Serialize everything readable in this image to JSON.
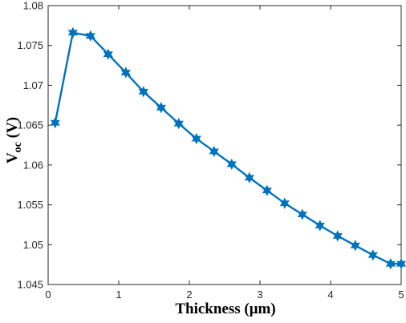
{
  "chart_data": {
    "type": "line",
    "title": "",
    "xlabel": "Thickness (μm)",
    "ylabel_main": "V",
    "ylabel_sub": "oc",
    "ylabel_unit": " (V)",
    "xlim": [
      0,
      5
    ],
    "ylim": [
      1.045,
      1.08
    ],
    "xticks": [
      0,
      1,
      2,
      3,
      4,
      5
    ],
    "xtick_labels": [
      "0",
      "1",
      "2",
      "3",
      "4",
      "5"
    ],
    "yticks": [
      1.045,
      1.05,
      1.055,
      1.06,
      1.065,
      1.07,
      1.075,
      1.08
    ],
    "ytick_labels": [
      "1.045",
      "1.05",
      "1.055",
      "1.06",
      "1.065",
      "1.07",
      "1.075",
      "1.08"
    ],
    "grid": false,
    "marker": "hexagram",
    "color": "#0072BD",
    "series": [
      {
        "x": [
          0.1,
          0.35,
          0.6,
          0.85,
          1.1,
          1.35,
          1.6,
          1.85,
          2.1,
          2.35,
          2.6,
          2.85,
          3.1,
          3.35,
          3.6,
          3.85,
          4.1,
          4.35,
          4.6,
          4.85,
          5.0
        ],
        "values": [
          1.0653,
          1.0766,
          1.0762,
          1.0739,
          1.0716,
          1.0692,
          1.0672,
          1.0652,
          1.0633,
          1.0617,
          1.0601,
          1.0584,
          1.0568,
          1.0552,
          1.0538,
          1.0524,
          1.0511,
          1.0499,
          1.0487,
          1.0476,
          1.0476
        ]
      }
    ]
  }
}
